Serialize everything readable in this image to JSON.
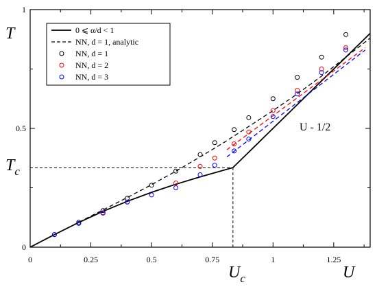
{
  "chart_data": {
    "type": "line",
    "title": "",
    "xlabel": "U",
    "ylabel": "T",
    "xlim": [
      0,
      1.4
    ],
    "ylim": [
      0,
      1
    ],
    "x_ticks": [
      0,
      0.25,
      0.5,
      0.75,
      1,
      1.25
    ],
    "x_tick_labels": [
      "0",
      "0.25",
      "0.5",
      "0.75",
      "1",
      "1.25"
    ],
    "y_ticks": [
      0,
      0.5,
      1
    ],
    "y_tick_labels": [
      "0",
      "0.5",
      "1"
    ],
    "critical_point": {
      "label_x": "U",
      "label_x_sub": "c",
      "label_y": "T",
      "label_y_sub": "c",
      "Uc": 0.835,
      "Tc": 0.335
    },
    "annotation": "U - 1/2",
    "legend_position": "top-left",
    "legend": [
      {
        "label": "0 ⩽ α/d < 1",
        "style": "solid",
        "color": "#000000"
      },
      {
        "label": "NN, d = 1, analytic",
        "style": "dashed",
        "color": "#000000"
      },
      {
        "label": "NN, d = 1",
        "style": "circle",
        "color": "#000000"
      },
      {
        "label": "NN, d = 2",
        "style": "circle",
        "color": "#ff0000"
      },
      {
        "label": "NN, d = 3",
        "style": "circle",
        "color": "#0000ff"
      }
    ],
    "series": [
      {
        "name": "0 ⩽ α/d < 1",
        "kind": "line",
        "style": "solid",
        "color": "#000000",
        "x": [
          0,
          0.1,
          0.2,
          0.3,
          0.4,
          0.5,
          0.6,
          0.7,
          0.835,
          0.9,
          1.0,
          1.1,
          1.2,
          1.3,
          1.4
        ],
        "y": [
          0,
          0.053,
          0.104,
          0.151,
          0.193,
          0.231,
          0.265,
          0.296,
          0.335,
          0.4,
          0.5,
          0.6,
          0.7,
          0.8,
          0.9
        ]
      },
      {
        "name": "NN, d = 1, analytic",
        "kind": "line",
        "style": "dashed",
        "color": "#000000",
        "x": [
          0,
          0.1,
          0.2,
          0.3,
          0.4,
          0.5,
          0.6,
          0.7,
          0.8,
          0.9,
          1.0,
          1.1,
          1.2,
          1.3,
          1.4
        ],
        "y": [
          0,
          0.053,
          0.105,
          0.157,
          0.209,
          0.263,
          0.32,
          0.38,
          0.442,
          0.508,
          0.575,
          0.645,
          0.72,
          0.8,
          0.88
        ]
      },
      {
        "name": "NN, d = 2 fit",
        "kind": "line",
        "style": "dashed",
        "color": "#ff0000",
        "x": [
          0.81,
          1.38
        ],
        "y": [
          0.41,
          0.84
        ]
      },
      {
        "name": "NN, d = 3 fit",
        "kind": "line",
        "style": "dashed",
        "color": "#0000ff",
        "x": [
          0.81,
          1.38
        ],
        "y": [
          0.38,
          0.83
        ]
      },
      {
        "name": "NN, d = 1",
        "kind": "marker",
        "color": "#000000",
        "x": [
          0.1,
          0.2,
          0.3,
          0.4,
          0.5,
          0.6,
          0.7,
          0.76,
          0.84,
          0.9,
          1.0,
          1.1,
          1.2,
          1.3
        ],
        "y": [
          0.053,
          0.105,
          0.154,
          0.206,
          0.261,
          0.32,
          0.39,
          0.44,
          0.495,
          0.545,
          0.625,
          0.715,
          0.8,
          0.895
        ]
      },
      {
        "name": "NN, d = 2",
        "kind": "marker",
        "color": "#ff0000",
        "x": [
          0.3,
          0.4,
          0.6,
          0.7,
          0.76,
          0.84,
          0.9,
          1.0,
          1.1,
          1.2,
          1.3
        ],
        "y": [
          0.143,
          0.19,
          0.27,
          0.34,
          0.375,
          0.435,
          0.485,
          0.575,
          0.66,
          0.75,
          0.84
        ]
      },
      {
        "name": "NN, d = 3",
        "kind": "marker",
        "color": "#0000ff",
        "x": [
          0.1,
          0.2,
          0.3,
          0.4,
          0.5,
          0.6,
          0.7,
          0.76,
          0.84,
          0.9,
          1.0,
          1.1,
          1.2,
          1.3
        ],
        "y": [
          0.053,
          0.1,
          0.145,
          0.19,
          0.22,
          0.25,
          0.305,
          0.345,
          0.405,
          0.455,
          0.55,
          0.645,
          0.735,
          0.83
        ]
      }
    ]
  }
}
